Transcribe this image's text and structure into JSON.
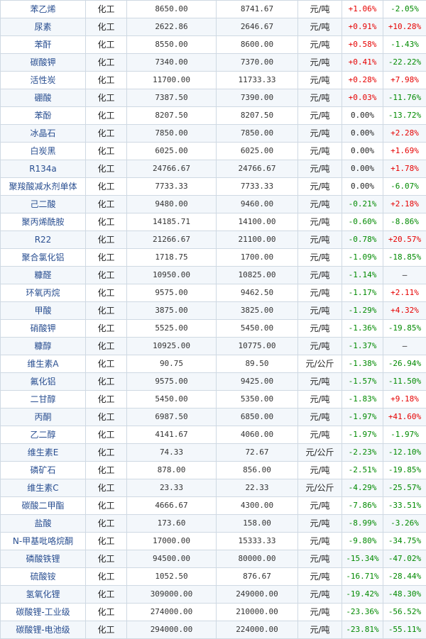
{
  "rows": [
    {
      "name": "苯乙烯",
      "category": "化工",
      "price_a": "8650.00",
      "price_b": "8741.67",
      "unit": "元/吨",
      "change1": "+1.06%",
      "change2": "-2.05%"
    },
    {
      "name": "尿素",
      "category": "化工",
      "price_a": "2622.86",
      "price_b": "2646.67",
      "unit": "元/吨",
      "change1": "+0.91%",
      "change2": "+10.28%"
    },
    {
      "name": "苯酐",
      "category": "化工",
      "price_a": "8550.00",
      "price_b": "8600.00",
      "unit": "元/吨",
      "change1": "+0.58%",
      "change2": "-1.43%"
    },
    {
      "name": "碳酸钾",
      "category": "化工",
      "price_a": "7340.00",
      "price_b": "7370.00",
      "unit": "元/吨",
      "change1": "+0.41%",
      "change2": "-22.22%"
    },
    {
      "name": "活性炭",
      "category": "化工",
      "price_a": "11700.00",
      "price_b": "11733.33",
      "unit": "元/吨",
      "change1": "+0.28%",
      "change2": "+7.98%"
    },
    {
      "name": "硼酸",
      "category": "化工",
      "price_a": "7387.50",
      "price_b": "7390.00",
      "unit": "元/吨",
      "change1": "+0.03%",
      "change2": "-11.76%"
    },
    {
      "name": "苯酚",
      "category": "化工",
      "price_a": "8207.50",
      "price_b": "8207.50",
      "unit": "元/吨",
      "change1": "0.00%",
      "change2": "-13.72%"
    },
    {
      "name": "冰晶石",
      "category": "化工",
      "price_a": "7850.00",
      "price_b": "7850.00",
      "unit": "元/吨",
      "change1": "0.00%",
      "change2": "+2.28%"
    },
    {
      "name": "白炭黑",
      "category": "化工",
      "price_a": "6025.00",
      "price_b": "6025.00",
      "unit": "元/吨",
      "change1": "0.00%",
      "change2": "+1.69%"
    },
    {
      "name": "R134a",
      "category": "化工",
      "price_a": "24766.67",
      "price_b": "24766.67",
      "unit": "元/吨",
      "change1": "0.00%",
      "change2": "+1.78%"
    },
    {
      "name": "聚羧酸减水剂单体",
      "category": "化工",
      "price_a": "7733.33",
      "price_b": "7733.33",
      "unit": "元/吨",
      "change1": "0.00%",
      "change2": "-6.07%"
    },
    {
      "name": "己二酸",
      "category": "化工",
      "price_a": "9480.00",
      "price_b": "9460.00",
      "unit": "元/吨",
      "change1": "-0.21%",
      "change2": "+2.18%"
    },
    {
      "name": "聚丙烯酰胺",
      "category": "化工",
      "price_a": "14185.71",
      "price_b": "14100.00",
      "unit": "元/吨",
      "change1": "-0.60%",
      "change2": "-8.86%"
    },
    {
      "name": "R22",
      "category": "化工",
      "price_a": "21266.67",
      "price_b": "21100.00",
      "unit": "元/吨",
      "change1": "-0.78%",
      "change2": "+20.57%"
    },
    {
      "name": "聚合氯化铝",
      "category": "化工",
      "price_a": "1718.75",
      "price_b": "1700.00",
      "unit": "元/吨",
      "change1": "-1.09%",
      "change2": "-18.85%"
    },
    {
      "name": "糠醛",
      "category": "化工",
      "price_a": "10950.00",
      "price_b": "10825.00",
      "unit": "元/吨",
      "change1": "-1.14%",
      "change2": "—"
    },
    {
      "name": "环氧丙烷",
      "category": "化工",
      "price_a": "9575.00",
      "price_b": "9462.50",
      "unit": "元/吨",
      "change1": "-1.17%",
      "change2": "+2.11%"
    },
    {
      "name": "甲酸",
      "category": "化工",
      "price_a": "3875.00",
      "price_b": "3825.00",
      "unit": "元/吨",
      "change1": "-1.29%",
      "change2": "+4.32%"
    },
    {
      "name": "硝酸钾",
      "category": "化工",
      "price_a": "5525.00",
      "price_b": "5450.00",
      "unit": "元/吨",
      "change1": "-1.36%",
      "change2": "-19.85%"
    },
    {
      "name": "糠醇",
      "category": "化工",
      "price_a": "10925.00",
      "price_b": "10775.00",
      "unit": "元/吨",
      "change1": "-1.37%",
      "change2": "—"
    },
    {
      "name": "维生素A",
      "category": "化工",
      "price_a": "90.75",
      "price_b": "89.50",
      "unit": "元/公斤",
      "change1": "-1.38%",
      "change2": "-26.94%"
    },
    {
      "name": "氟化铝",
      "category": "化工",
      "price_a": "9575.00",
      "price_b": "9425.00",
      "unit": "元/吨",
      "change1": "-1.57%",
      "change2": "-11.50%"
    },
    {
      "name": "二甘醇",
      "category": "化工",
      "price_a": "5450.00",
      "price_b": "5350.00",
      "unit": "元/吨",
      "change1": "-1.83%",
      "change2": "+9.18%"
    },
    {
      "name": "丙酮",
      "category": "化工",
      "price_a": "6987.50",
      "price_b": "6850.00",
      "unit": "元/吨",
      "change1": "-1.97%",
      "change2": "+41.60%"
    },
    {
      "name": "乙二醇",
      "category": "化工",
      "price_a": "4141.67",
      "price_b": "4060.00",
      "unit": "元/吨",
      "change1": "-1.97%",
      "change2": "-1.97%"
    },
    {
      "name": "维生素E",
      "category": "化工",
      "price_a": "74.33",
      "price_b": "72.67",
      "unit": "元/公斤",
      "change1": "-2.23%",
      "change2": "-12.10%"
    },
    {
      "name": "磷矿石",
      "category": "化工",
      "price_a": "878.00",
      "price_b": "856.00",
      "unit": "元/吨",
      "change1": "-2.51%",
      "change2": "-19.85%"
    },
    {
      "name": "维生素C",
      "category": "化工",
      "price_a": "23.33",
      "price_b": "22.33",
      "unit": "元/公斤",
      "change1": "-4.29%",
      "change2": "-25.57%"
    },
    {
      "name": "碳酸二甲酯",
      "category": "化工",
      "price_a": "4666.67",
      "price_b": "4300.00",
      "unit": "元/吨",
      "change1": "-7.86%",
      "change2": "-33.51%"
    },
    {
      "name": "盐酸",
      "category": "化工",
      "price_a": "173.60",
      "price_b": "158.00",
      "unit": "元/吨",
      "change1": "-8.99%",
      "change2": "-3.26%"
    },
    {
      "name": "N-甲基吡咯烷酮",
      "category": "化工",
      "price_a": "17000.00",
      "price_b": "15333.33",
      "unit": "元/吨",
      "change1": "-9.80%",
      "change2": "-34.75%"
    },
    {
      "name": "磷酸铁锂",
      "category": "化工",
      "price_a": "94500.00",
      "price_b": "80000.00",
      "unit": "元/吨",
      "change1": "-15.34%",
      "change2": "-47.02%"
    },
    {
      "name": "硫酸铵",
      "category": "化工",
      "price_a": "1052.50",
      "price_b": "876.67",
      "unit": "元/吨",
      "change1": "-16.71%",
      "change2": "-28.44%"
    },
    {
      "name": "氢氧化锂",
      "category": "化工",
      "price_a": "309000.00",
      "price_b": "249000.00",
      "unit": "元/吨",
      "change1": "-19.42%",
      "change2": "-48.30%"
    },
    {
      "name": "碳酸锂-工业级",
      "category": "化工",
      "price_a": "274000.00",
      "price_b": "210000.00",
      "unit": "元/吨",
      "change1": "-23.36%",
      "change2": "-56.52%"
    },
    {
      "name": "碳酸锂-电池级",
      "category": "化工",
      "price_a": "294000.00",
      "price_b": "224000.00",
      "unit": "元/吨",
      "change1": "-23.81%",
      "change2": "-55.11%"
    }
  ],
  "colors": {
    "up": "#e60000",
    "down": "#008a00",
    "name": "#2a4f91",
    "border": "#cfd9e3"
  }
}
